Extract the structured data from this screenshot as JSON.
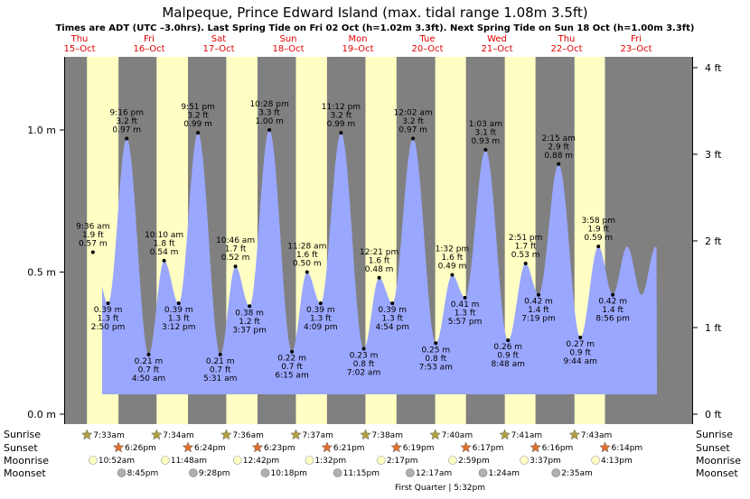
{
  "title": "Malpeque, Prince Edward Island (max. tidal range 1.08m 3.5ft)",
  "subtitle": "Times are ADT (UTC –3.0hrs). Last Spring Tide on Fri 02 Oct (h=1.02m 3.3ft). Next Spring Tide on Sun 18 Oct (h=1.00m 3.3ft)",
  "colors": {
    "night": "#808080",
    "day": "#ffffc4",
    "tide": "#9aa7ff",
    "text_red": "#e00000",
    "sun_icon": "#b0a040",
    "sunset_icon": "#e07030",
    "moonrise_icon": "#ffffc4",
    "moonset_icon": "#b0b0b0"
  },
  "chart_data": {
    "type": "area",
    "title": "Malpeque, Prince Edward Island (max. tidal range 1.08m 3.5ft)",
    "ylabel_left": "m",
    "ylabel_right": "ft",
    "ylim": [
      0,
      1.25
    ],
    "left_ticks": [
      "0.0 m",
      "0.5 m",
      "1.0 m"
    ],
    "left_tick_values": [
      0,
      0.5,
      1.0
    ],
    "right_ticks": [
      "0 ft",
      "1 ft",
      "2 ft",
      "3 ft",
      "4 ft"
    ],
    "right_tick_values": [
      0,
      1,
      2,
      3,
      4
    ],
    "days": [
      {
        "name": "Thu",
        "date": "15–Oct"
      },
      {
        "name": "Fri",
        "date": "16–Oct"
      },
      {
        "name": "Sat",
        "date": "17–Oct"
      },
      {
        "name": "Sun",
        "date": "18–Oct"
      },
      {
        "name": "Mon",
        "date": "19–Oct"
      },
      {
        "name": "Tue",
        "date": "20–Oct"
      },
      {
        "name": "Wed",
        "date": "21–Oct"
      },
      {
        "name": "Thu",
        "date": "22–Oct"
      },
      {
        "name": "Fri",
        "date": "23–Oct"
      }
    ],
    "tides": [
      {
        "day": 0,
        "hour": 9.6,
        "height": 0.57,
        "time": "9:36 am",
        "ft": "1.9 ft",
        "m": "0.57 m",
        "type": "high"
      },
      {
        "day": 0,
        "hour": 14.83,
        "height": 0.39,
        "time": "2:50 pm",
        "ft": "1.3 ft",
        "m": "0.39 m",
        "type": "low"
      },
      {
        "day": 0,
        "hour": 21.27,
        "height": 0.97,
        "time": "9:16 pm",
        "ft": "3.2 ft",
        "m": "0.97 m",
        "type": "high"
      },
      {
        "day": 1,
        "hour": 4.83,
        "height": 0.21,
        "time": "4:50 am",
        "ft": "0.7 ft",
        "m": "0.21 m",
        "type": "low"
      },
      {
        "day": 1,
        "hour": 10.17,
        "height": 0.54,
        "time": "10:10 am",
        "ft": "1.8 ft",
        "m": "0.54 m",
        "type": "high"
      },
      {
        "day": 1,
        "hour": 15.2,
        "height": 0.39,
        "time": "3:12 pm",
        "ft": "1.3 ft",
        "m": "0.39 m",
        "type": "low"
      },
      {
        "day": 1,
        "hour": 21.85,
        "height": 0.99,
        "time": "9:51 pm",
        "ft": "3.2 ft",
        "m": "0.99 m",
        "type": "high"
      },
      {
        "day": 2,
        "hour": 5.52,
        "height": 0.21,
        "time": "5:31 am",
        "ft": "0.7 ft",
        "m": "0.21 m",
        "type": "low"
      },
      {
        "day": 2,
        "hour": 10.77,
        "height": 0.52,
        "time": "10:46 am",
        "ft": "1.7 ft",
        "m": "0.52 m",
        "type": "high"
      },
      {
        "day": 2,
        "hour": 15.62,
        "height": 0.38,
        "time": "3:37 pm",
        "ft": "1.2 ft",
        "m": "0.38 m",
        "type": "low"
      },
      {
        "day": 2,
        "hour": 22.47,
        "height": 1.0,
        "time": "10:28 pm",
        "ft": "3.3 ft",
        "m": "1.00 m",
        "type": "high"
      },
      {
        "day": 3,
        "hour": 6.25,
        "height": 0.22,
        "time": "6:15 am",
        "ft": "0.7 ft",
        "m": "0.22 m",
        "type": "low"
      },
      {
        "day": 3,
        "hour": 11.47,
        "height": 0.5,
        "time": "11:28 am",
        "ft": "1.6 ft",
        "m": "0.50 m",
        "type": "high"
      },
      {
        "day": 3,
        "hour": 16.15,
        "height": 0.39,
        "time": "4:09 pm",
        "ft": "1.3 ft",
        "m": "0.39 m",
        "type": "low"
      },
      {
        "day": 3,
        "hour": 23.2,
        "height": 0.99,
        "time": "11:12 pm",
        "ft": "3.2 ft",
        "m": "0.99 m",
        "type": "high"
      },
      {
        "day": 4,
        "hour": 7.03,
        "height": 0.23,
        "time": "7:02 am",
        "ft": "0.8 ft",
        "m": "0.23 m",
        "type": "low"
      },
      {
        "day": 4,
        "hour": 12.35,
        "height": 0.48,
        "time": "12:21 pm",
        "ft": "1.6 ft",
        "m": "0.48 m",
        "type": "high"
      },
      {
        "day": 4,
        "hour": 16.9,
        "height": 0.39,
        "time": "4:54 pm",
        "ft": "1.3 ft",
        "m": "0.39 m",
        "type": "low"
      },
      {
        "day": 5,
        "hour": 0.03,
        "height": 0.97,
        "time": "12:02 am",
        "ft": "3.2 ft",
        "m": "0.97 m",
        "type": "high"
      },
      {
        "day": 5,
        "hour": 7.88,
        "height": 0.25,
        "time": "7:53 am",
        "ft": "0.8 ft",
        "m": "0.25 m",
        "type": "low"
      },
      {
        "day": 5,
        "hour": 13.53,
        "height": 0.49,
        "time": "1:32 pm",
        "ft": "1.6 ft",
        "m": "0.49 m",
        "type": "high"
      },
      {
        "day": 5,
        "hour": 17.95,
        "height": 0.41,
        "time": "5:57 pm",
        "ft": "1.3 ft",
        "m": "0.41 m",
        "type": "low"
      },
      {
        "day": 6,
        "hour": 1.05,
        "height": 0.93,
        "time": "1:03 am",
        "ft": "3.1 ft",
        "m": "0.93 m",
        "type": "high"
      },
      {
        "day": 6,
        "hour": 8.8,
        "height": 0.26,
        "time": "8:48 am",
        "ft": "0.9 ft",
        "m": "0.26 m",
        "type": "low"
      },
      {
        "day": 6,
        "hour": 14.85,
        "height": 0.53,
        "time": "2:51 pm",
        "ft": "1.7 ft",
        "m": "0.53 m",
        "type": "high"
      },
      {
        "day": 6,
        "hour": 19.32,
        "height": 0.42,
        "time": "7:19 pm",
        "ft": "1.4 ft",
        "m": "0.42 m",
        "type": "low"
      },
      {
        "day": 7,
        "hour": 2.25,
        "height": 0.88,
        "time": "2:15 am",
        "ft": "2.9 ft",
        "m": "0.88 m",
        "type": "high"
      },
      {
        "day": 7,
        "hour": 9.73,
        "height": 0.27,
        "time": "9:44 am",
        "ft": "0.9 ft",
        "m": "0.27 m",
        "type": "low"
      },
      {
        "day": 7,
        "hour": 15.97,
        "height": 0.59,
        "time": "3:58 pm",
        "ft": "1.9 ft",
        "m": "0.59 m",
        "type": "high"
      },
      {
        "day": 7,
        "hour": 20.93,
        "height": 0.42,
        "time": "8:56 pm",
        "ft": "1.4 ft",
        "m": "0.42 m",
        "type": "low"
      }
    ],
    "daylight": [
      {
        "day": 0,
        "sunrise": 7.55,
        "sunset": 18.43
      },
      {
        "day": 1,
        "sunrise": 7.57,
        "sunset": 18.4
      },
      {
        "day": 2,
        "sunrise": 7.6,
        "sunset": 18.38
      },
      {
        "day": 3,
        "sunrise": 7.62,
        "sunset": 18.35
      },
      {
        "day": 4,
        "sunrise": 7.63,
        "sunset": 18.32
      },
      {
        "day": 5,
        "sunrise": 7.67,
        "sunset": 18.28
      },
      {
        "day": 6,
        "sunrise": 7.68,
        "sunset": 18.27
      },
      {
        "day": 7,
        "sunrise": 7.72,
        "sunset": 18.23
      }
    ]
  },
  "rows": {
    "sunrise": {
      "label": "Sunrise",
      "events": [
        {
          "day": 0,
          "hour": 7.55,
          "time": "7:33am"
        },
        {
          "day": 1,
          "hour": 7.57,
          "time": "7:34am"
        },
        {
          "day": 2,
          "hour": 7.6,
          "time": "7:36am"
        },
        {
          "day": 3,
          "hour": 7.62,
          "time": "7:37am"
        },
        {
          "day": 4,
          "hour": 7.63,
          "time": "7:38am"
        },
        {
          "day": 5,
          "hour": 7.67,
          "time": "7:40am"
        },
        {
          "day": 6,
          "hour": 7.68,
          "time": "7:41am"
        },
        {
          "day": 7,
          "hour": 7.72,
          "time": "7:43am"
        }
      ]
    },
    "sunset": {
      "label": "Sunset",
      "events": [
        {
          "day": 0,
          "hour": 18.43,
          "time": "6:26pm"
        },
        {
          "day": 1,
          "hour": 18.4,
          "time": "6:24pm"
        },
        {
          "day": 2,
          "hour": 18.38,
          "time": "6:23pm"
        },
        {
          "day": 3,
          "hour": 18.35,
          "time": "6:21pm"
        },
        {
          "day": 4,
          "hour": 18.32,
          "time": "6:19pm"
        },
        {
          "day": 5,
          "hour": 18.28,
          "time": "6:17pm"
        },
        {
          "day": 6,
          "hour": 18.27,
          "time": "6:16pm"
        },
        {
          "day": 7,
          "hour": 18.23,
          "time": "6:14pm"
        }
      ]
    },
    "moonrise": {
      "label": "Moonrise",
      "events": [
        {
          "day": 0,
          "hour": 10.87,
          "time": "10:52am"
        },
        {
          "day": 1,
          "hour": 11.8,
          "time": "11:48am"
        },
        {
          "day": 2,
          "hour": 12.7,
          "time": "12:42pm"
        },
        {
          "day": 3,
          "hour": 13.53,
          "time": "1:32pm"
        },
        {
          "day": 4,
          "hour": 14.28,
          "time": "2:17pm"
        },
        {
          "day": 5,
          "hour": 14.98,
          "time": "2:59pm"
        },
        {
          "day": 6,
          "hour": 15.62,
          "time": "3:37pm"
        },
        {
          "day": 7,
          "hour": 16.22,
          "time": "4:13pm"
        }
      ]
    },
    "moonset": {
      "label": "Moonset",
      "events": [
        {
          "day": 0,
          "hour": 20.75,
          "time": "8:45pm"
        },
        {
          "day": 1,
          "hour": 21.47,
          "time": "9:28pm"
        },
        {
          "day": 2,
          "hour": 22.3,
          "time": "10:18pm"
        },
        {
          "day": 3,
          "hour": 23.25,
          "time": "11:15pm"
        },
        {
          "day": 5,
          "hour": 0.28,
          "time": "12:17am"
        },
        {
          "day": 6,
          "hour": 1.4,
          "time": "1:24am"
        },
        {
          "day": 7,
          "hour": 2.58,
          "time": "2:35am"
        }
      ]
    }
  },
  "moon_phase": "First Quarter | 5:32pm"
}
